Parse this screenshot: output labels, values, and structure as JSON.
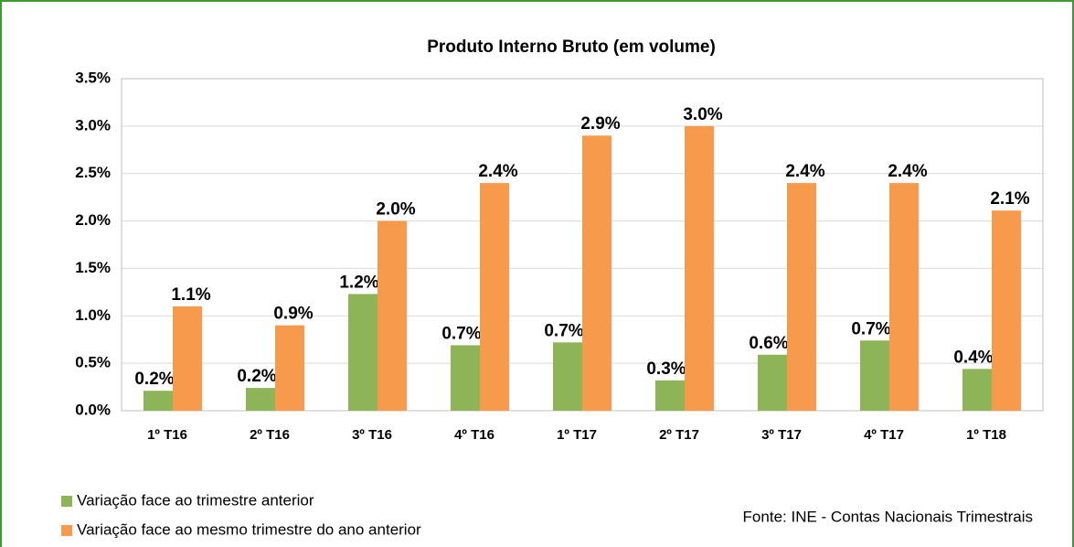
{
  "chart_data": {
    "type": "bar",
    "title": "Produto Interno Bruto (em volume)",
    "categories": [
      "1º T16",
      "2º T16",
      "3º T16",
      "4º T16",
      "1º T17",
      "2º T17",
      "3º T17",
      "4º T17",
      "1º T18"
    ],
    "series": [
      {
        "name": "Variação face ao trimestre anterior",
        "color": "#8db557",
        "values": [
          0.21,
          0.24,
          1.23,
          0.69,
          0.72,
          0.32,
          0.59,
          0.74,
          0.44
        ],
        "value_labels": [
          "0.2%",
          "0.2%",
          "1.2%",
          "0.7%",
          "0.7%",
          "0.3%",
          "0.6%",
          "0.7%",
          "0.4%"
        ]
      },
      {
        "name": "Variação face ao mesmo trimestre do ano anterior",
        "color": "#f79a4b",
        "values": [
          1.1,
          0.9,
          2.0,
          2.4,
          2.9,
          3.0,
          2.4,
          2.4,
          2.11
        ],
        "value_labels": [
          "1.1%",
          "0.9%",
          "2.0%",
          "2.4%",
          "2.9%",
          "3.0%",
          "2.4%",
          "2.4%",
          "2.1%"
        ]
      }
    ],
    "ylim": [
      0,
      3.5
    ],
    "yticks": [
      {
        "value": 0,
        "label": "0.0%"
      },
      {
        "value": 0.5,
        "label": "0.5%"
      },
      {
        "value": 1,
        "label": "1.0%"
      },
      {
        "value": 1.5,
        "label": "1.5%"
      },
      {
        "value": 2,
        "label": "2.0%"
      },
      {
        "value": 2.5,
        "label": "2.5%"
      },
      {
        "value": 3,
        "label": "3.0%"
      },
      {
        "value": 3.5,
        "label": "3.5%"
      }
    ],
    "grid": true,
    "source": "Fonte: INE - Contas Nacionais Trimestrais"
  }
}
